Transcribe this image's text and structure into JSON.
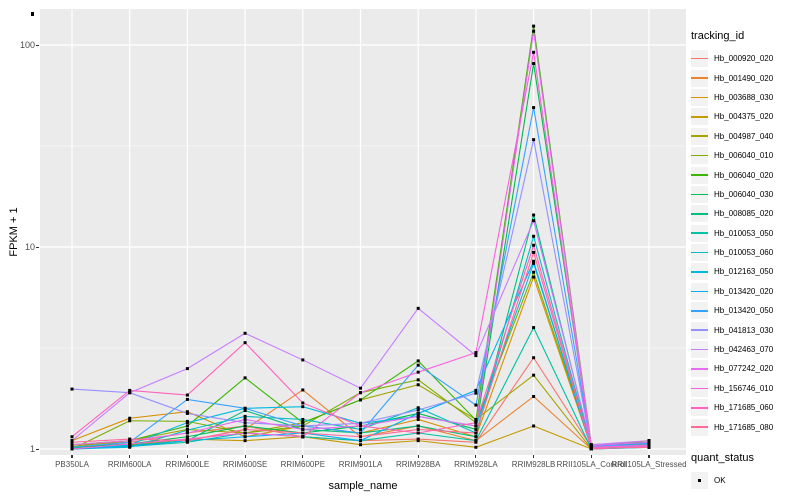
{
  "figure": {
    "background": "#FFFFFF"
  },
  "chart_data": {
    "type": "line",
    "title": "",
    "xlabel": "sample_name",
    "ylabel": "FPKM + 1",
    "y_scale": "log10",
    "ylim": [
      0.93,
      149
    ],
    "grid": true,
    "legend_position": "right",
    "panel_bg": "#EBEBEB",
    "grid_color": "#FFFFFF",
    "y_major_ticks": [
      {
        "label": "100",
        "value": 100
      },
      {
        "label": "10",
        "value": 10
      },
      {
        "label": "1",
        "value": 1
      }
    ],
    "y_minor_gridlines": [
      3.1623,
      31.623
    ],
    "categories": [
      "PB350LA",
      "RRIM600LA",
      "RRIM600LE",
      "RRIM600SE",
      "RRIM600PE",
      "RRIM901LA",
      "RRIM928BA",
      "RRIM928LA",
      "RRIM928LB",
      "RRII105LA_Control",
      "RRII105LA_Stressed"
    ],
    "point_marker": {
      "shape": "square",
      "color": "#000000",
      "size": 3
    },
    "series": [
      {
        "name": "Hb_000920_020",
        "color": "#F8766D",
        "values": [
          1.05,
          1.08,
          1.2,
          1.3,
          1.15,
          1.1,
          1.12,
          1.08,
          2.83,
          1.02,
          1.05
        ]
      },
      {
        "name": "Hb_001490_020",
        "color": "#EA8331",
        "values": [
          1.02,
          1.05,
          1.1,
          1.25,
          1.96,
          1.15,
          1.3,
          1.1,
          1.82,
          1.0,
          1.03
        ]
      },
      {
        "name": "Hb_003688_030",
        "color": "#D89000",
        "values": [
          1.1,
          1.42,
          1.53,
          1.15,
          1.3,
          1.2,
          1.4,
          1.15,
          7.1,
          1.02,
          1.1
        ]
      },
      {
        "name": "Hb_004375_020",
        "color": "#C49A00",
        "values": [
          1.0,
          1.05,
          1.12,
          1.1,
          1.15,
          1.05,
          1.1,
          1.02,
          1.3,
          1.0,
          1.08
        ]
      },
      {
        "name": "Hb_004987_040",
        "color": "#A3A500",
        "values": [
          1.03,
          1.1,
          1.25,
          1.2,
          1.35,
          1.75,
          2.08,
          1.4,
          2.32,
          1.0,
          1.02
        ]
      },
      {
        "name": "Hb_006040_010",
        "color": "#7CAE00",
        "values": [
          1.0,
          1.38,
          1.37,
          1.2,
          1.3,
          1.9,
          2.2,
          1.35,
          7.5,
          1.03,
          1.1
        ]
      },
      {
        "name": "Hb_006040_020",
        "color": "#39B600",
        "values": [
          1.05,
          1.1,
          1.3,
          2.25,
          1.35,
          1.75,
          2.73,
          1.39,
          124.0,
          1.05,
          1.08
        ]
      },
      {
        "name": "Hb_006040_030",
        "color": "#00BB4E",
        "values": [
          1.02,
          1.06,
          1.15,
          1.3,
          1.2,
          1.3,
          1.5,
          1.25,
          81.0,
          1.04,
          1.06
        ]
      },
      {
        "name": "Hb_008085_020",
        "color": "#00BF7D",
        "values": [
          1.0,
          1.04,
          1.1,
          1.55,
          1.25,
          1.2,
          1.3,
          1.15,
          14.4,
          1.02,
          1.05
        ]
      },
      {
        "name": "Hb_010053_050",
        "color": "#00C1A3",
        "values": [
          1.01,
          1.03,
          1.08,
          1.2,
          1.15,
          1.1,
          1.2,
          1.1,
          3.99,
          1.0,
          1.04
        ]
      },
      {
        "name": "Hb_010053_060",
        "color": "#00BFC4",
        "values": [
          1.0,
          1.02,
          1.24,
          1.45,
          1.4,
          1.25,
          1.6,
          1.2,
          11.3,
          1.01,
          1.03
        ]
      },
      {
        "name": "Hb_012163_050",
        "color": "#00BAE0",
        "values": [
          1.0,
          1.05,
          1.35,
          1.59,
          1.62,
          1.34,
          1.45,
          1.3,
          8.3,
          1.02,
          1.05
        ]
      },
      {
        "name": "Hb_013420_020",
        "color": "#00B0F6",
        "values": [
          1.0,
          1.03,
          1.1,
          1.15,
          1.2,
          1.1,
          1.5,
          1.95,
          8.5,
          1.0,
          1.02
        ]
      },
      {
        "name": "Hb_013420_050",
        "color": "#35A2FF",
        "values": [
          1.02,
          1.08,
          1.76,
          1.59,
          1.3,
          1.2,
          2.6,
          1.65,
          49.0,
          1.03,
          1.07
        ]
      },
      {
        "name": "Hb_041813_030",
        "color": "#9590FF",
        "values": [
          1.98,
          1.9,
          1.5,
          1.35,
          1.3,
          1.34,
          1.56,
          1.89,
          34.0,
          1.02,
          1.05
        ]
      },
      {
        "name": "Hb_042463_070",
        "color": "#C77CFF",
        "values": [
          1.1,
          1.9,
          2.5,
          3.74,
          2.76,
          2.0,
          4.97,
          2.9,
          13.5,
          1.05,
          1.1
        ]
      },
      {
        "name": "Hb_077242_020",
        "color": "#E76BF3",
        "values": [
          1.05,
          1.1,
          1.2,
          1.4,
          1.25,
          1.3,
          1.45,
          1.3,
          117.0,
          1.04,
          1.08
        ]
      },
      {
        "name": "Hb_156746_010",
        "color": "#FA62DB",
        "values": [
          1.0,
          1.06,
          1.12,
          1.2,
          1.15,
          1.9,
          2.4,
          3.0,
          92.0,
          1.02,
          1.04
        ]
      },
      {
        "name": "Hb_171685_060",
        "color": "#FF62BC",
        "values": [
          1.15,
          1.95,
          1.85,
          3.36,
          1.69,
          1.3,
          1.2,
          1.35,
          10.2,
          1.0,
          1.03
        ]
      },
      {
        "name": "Hb_171685_080",
        "color": "#FF6A98",
        "values": [
          1.08,
          1.12,
          1.1,
          1.25,
          1.2,
          1.15,
          1.25,
          1.2,
          9.4,
          1.01,
          1.02
        ]
      }
    ],
    "legends": {
      "tracking_id": {
        "title": "tracking_id"
      },
      "quant_status": {
        "title": "quant_status",
        "items": [
          {
            "label": "OK"
          }
        ]
      }
    }
  },
  "colors": {
    "panel_bg": "#EBEBEB",
    "gridline": "#FFFFFF",
    "tick_text": "#4D4D4D",
    "axis_title_text": "#000000",
    "legend_key_bg": "#F2F2F2",
    "marker": "#000000"
  }
}
